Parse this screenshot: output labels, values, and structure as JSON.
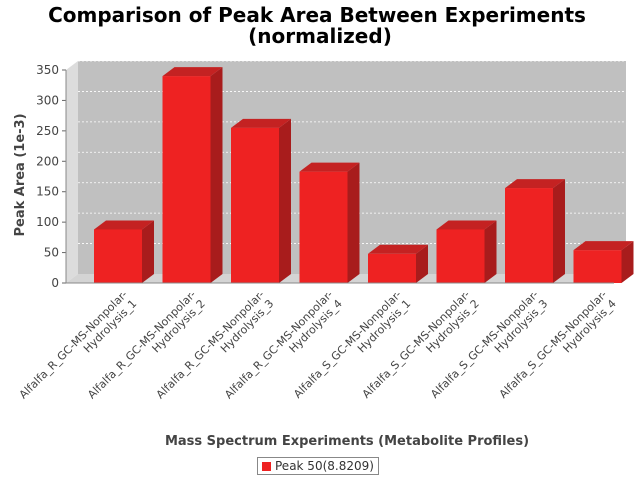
{
  "chart_data": {
    "type": "bar",
    "title": "Comparison of Peak Area Between Experiments",
    "subtitle": "(normalized)",
    "xlabel": "Mass Spectrum Experiments (Metabolite Profiles)",
    "ylabel": "Peak Area (1e-3)",
    "ylim": [
      0,
      350
    ],
    "yticks": [
      0,
      50,
      100,
      150,
      200,
      250,
      300,
      350
    ],
    "grid": true,
    "legend_position": "bottom",
    "categories": [
      [
        "Alfalfa_R_GC-MS-Nonpolar-",
        "Hydrolysis_1"
      ],
      [
        "Alfalfa_R_GC-MS-Nonpolar-",
        "Hydrolysis_2"
      ],
      [
        "Alfalfa_R_GC-MS-Nonpolar-",
        "Hydrolysis_3"
      ],
      [
        "Alfalfa_R_GC-MS-Nonpolar-",
        "Hydrolysis_4"
      ],
      [
        "Alfalfa_S_GC-MS-Nonpolar-",
        "Hydrolysis_1"
      ],
      [
        "Alfalfa_S_GC-MS-Nonpolar-",
        "Hydrolysis_2"
      ],
      [
        "Alfalfa_S_GC-MS-Nonpolar-",
        "Hydrolysis_3"
      ],
      [
        "Alfalfa_S_GC-MS-Nonpolar-",
        "Hydrolysis_4"
      ]
    ],
    "series": [
      {
        "name": "Peak 50(8.8209)",
        "color": "#ee2222",
        "values": [
          88,
          340,
          255,
          183,
          48,
          88,
          156,
          54
        ]
      }
    ]
  }
}
